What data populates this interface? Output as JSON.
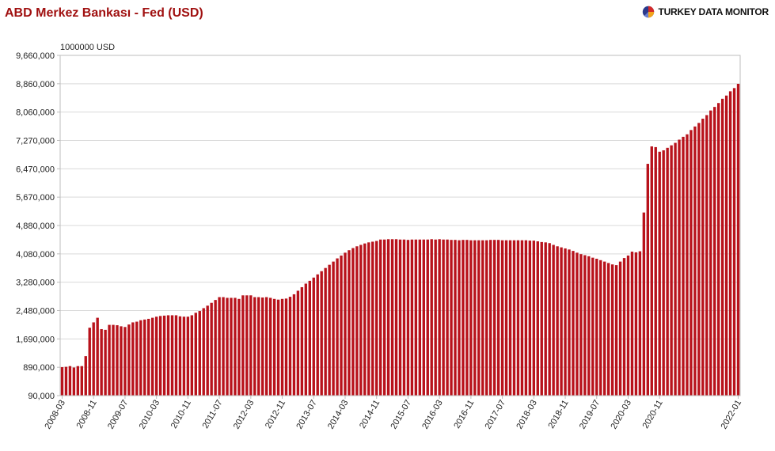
{
  "title": "ABD Merkez Bankası - Fed (USD)",
  "brand": {
    "name": "TURKEY DATA MONITOR",
    "logo_icon": "pie-logo-icon"
  },
  "colors": {
    "bar": "#b8121b",
    "title": "#a01010",
    "grid": "#d9d9d9",
    "axis": "#bdbdbd"
  },
  "chart_data": {
    "type": "bar",
    "unit_label": "1000000 USD",
    "ylim": [
      90000,
      9660000
    ],
    "y_ticks": [
      "90,000",
      "890,000",
      "1,690,000",
      "2,480,000",
      "3,280,000",
      "4,080,000",
      "4,880,000",
      "5,670,000",
      "6,470,000",
      "7,270,000",
      "8,060,000",
      "8,860,000",
      "9,660,000"
    ],
    "x_ticks": [
      "2008-03",
      "2008-11",
      "2009-07",
      "2010-03",
      "2010-11",
      "2011-07",
      "2012-03",
      "2012-11",
      "2013-07",
      "2014-03",
      "2014-11",
      "2015-07",
      "2016-03",
      "2016-11",
      "2017-07",
      "2018-03",
      "2018-11",
      "2019-07",
      "2020-03",
      "2020-11",
      "2022-01"
    ],
    "grid": true,
    "legend": "none",
    "series": [
      {
        "values": [
          890000,
          900000,
          920000,
          880000,
          920000,
          920000,
          1200000,
          2000000,
          2150000,
          2280000,
          1960000,
          1940000,
          2080000,
          2080000,
          2070000,
          2040000,
          2020000,
          2090000,
          2150000,
          2170000,
          2210000,
          2230000,
          2250000,
          2280000,
          2310000,
          2330000,
          2340000,
          2350000,
          2350000,
          2350000,
          2320000,
          2310000,
          2310000,
          2350000,
          2420000,
          2470000,
          2550000,
          2620000,
          2700000,
          2780000,
          2860000,
          2860000,
          2840000,
          2840000,
          2840000,
          2810000,
          2910000,
          2910000,
          2910000,
          2860000,
          2860000,
          2850000,
          2860000,
          2840000,
          2810000,
          2790000,
          2810000,
          2820000,
          2870000,
          2940000,
          3040000,
          3140000,
          3240000,
          3320000,
          3410000,
          3500000,
          3590000,
          3680000,
          3770000,
          3860000,
          3950000,
          4030000,
          4110000,
          4180000,
          4240000,
          4290000,
          4330000,
          4370000,
          4400000,
          4420000,
          4440000,
          4480000,
          4480000,
          4490000,
          4490000,
          4490000,
          4480000,
          4480000,
          4470000,
          4480000,
          4480000,
          4480000,
          4480000,
          4480000,
          4490000,
          4480000,
          4490000,
          4480000,
          4480000,
          4470000,
          4470000,
          4460000,
          4470000,
          4470000,
          4460000,
          4460000,
          4460000,
          4460000,
          4460000,
          4470000,
          4470000,
          4470000,
          4460000,
          4460000,
          4460000,
          4460000,
          4460000,
          4460000,
          4460000,
          4450000,
          4450000,
          4430000,
          4410000,
          4400000,
          4380000,
          4330000,
          4290000,
          4260000,
          4230000,
          4200000,
          4160000,
          4110000,
          4070000,
          4040000,
          4010000,
          3970000,
          3940000,
          3900000,
          3860000,
          3820000,
          3780000,
          3760000,
          3860000,
          3960000,
          4030000,
          4140000,
          4120000,
          4150000,
          5240000,
          6610000,
          7100000,
          7080000,
          6950000,
          6990000,
          7060000,
          7130000,
          7200000,
          7290000,
          7370000,
          7440000,
          7560000,
          7660000,
          7760000,
          7880000,
          7980000,
          8110000,
          8210000,
          8320000,
          8440000,
          8530000,
          8650000,
          8740000,
          8860000
        ]
      }
    ]
  }
}
